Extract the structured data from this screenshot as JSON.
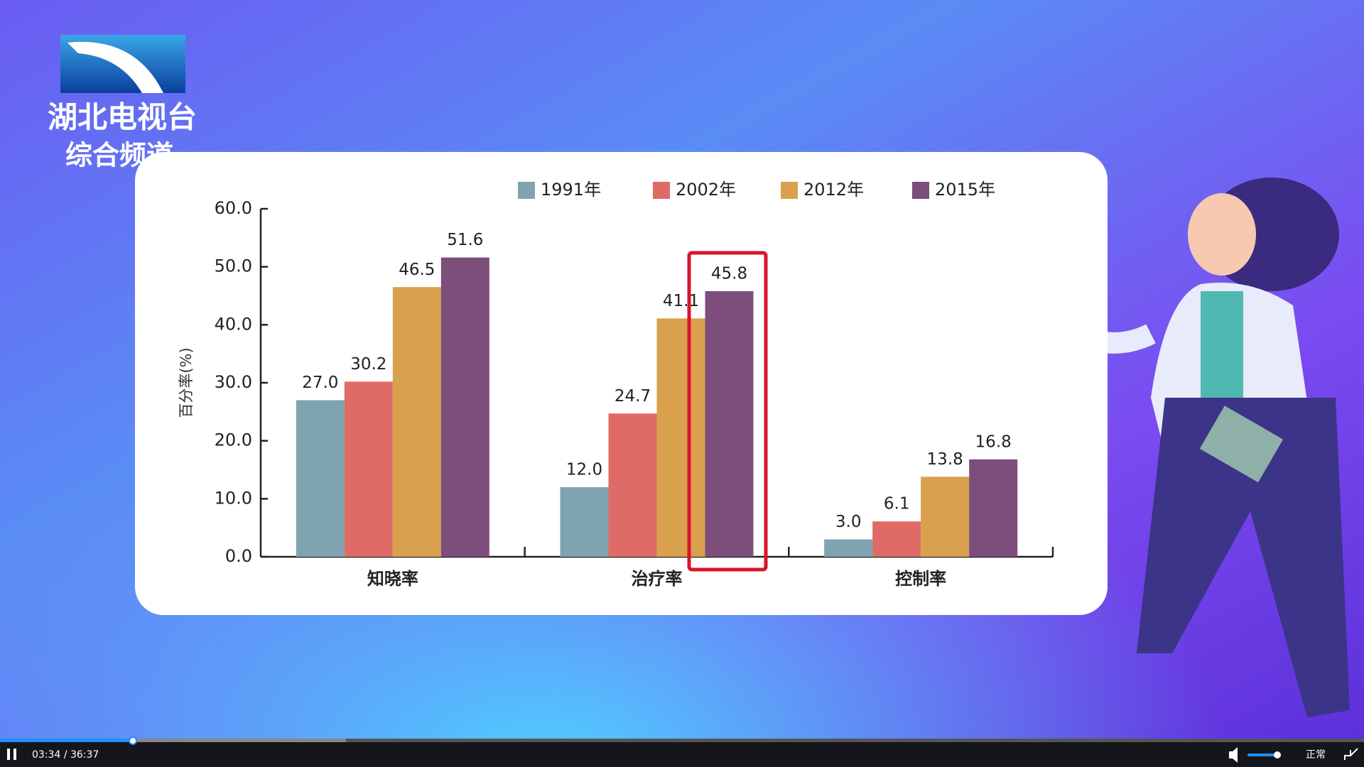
{
  "logo": {
    "name": "湖北电视台",
    "channel": "综合频道"
  },
  "player": {
    "time": "03:34 / 36:37",
    "speed": "正常"
  },
  "chart_data": {
    "type": "bar",
    "y_label": "百分率(%)",
    "categories": [
      "知晓率",
      "治疗率",
      "控制率"
    ],
    "series": [
      {
        "name": "1991年",
        "color": "#7fa4b0",
        "values": [
          27.0,
          12.0,
          3.0
        ],
        "value_labels": [
          "27.0",
          "12.0",
          "3.0"
        ]
      },
      {
        "name": "2002年",
        "color": "#df6b67",
        "values": [
          30.2,
          24.7,
          6.1
        ],
        "value_labels": [
          "30.2",
          "24.7",
          "6.1"
        ]
      },
      {
        "name": "2012年",
        "color": "#d9a04e",
        "values": [
          46.5,
          41.1,
          13.8
        ],
        "value_labels": [
          "46.5",
          "41.1",
          "13.8"
        ]
      },
      {
        "name": "2015年",
        "color": "#7d4d7c",
        "values": [
          51.6,
          45.8,
          16.8
        ],
        "value_labels": [
          "51.6",
          "45.8",
          "16.8"
        ]
      }
    ],
    "ylim": [
      0,
      60
    ],
    "yticks": [
      {
        "value": 0,
        "label": "0.0"
      },
      {
        "value": 10,
        "label": "10.0"
      },
      {
        "value": 20,
        "label": "20.0"
      },
      {
        "value": 30,
        "label": "30.0"
      },
      {
        "value": 40,
        "label": "40.0"
      },
      {
        "value": 50,
        "label": "50.0"
      },
      {
        "value": 60,
        "label": "60.0"
      }
    ],
    "grid": false,
    "legend": "top"
  }
}
